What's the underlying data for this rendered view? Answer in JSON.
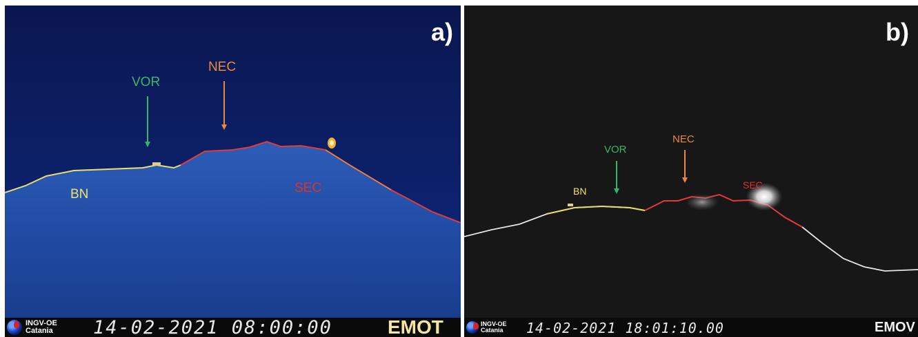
{
  "panel_a": {
    "letter": "a)",
    "labels": {
      "vor": "VOR",
      "nec": "NEC",
      "bn": "BN",
      "sec": "SEC"
    },
    "footer": {
      "org_line1": "INGV-OE",
      "org_line2": "Catania",
      "timestamp": "14-02-2021 08:00:00",
      "camera": "EMOT"
    }
  },
  "panel_b": {
    "letter": "b)",
    "labels": {
      "vor": "VOR",
      "nec": "NEC",
      "bn": "BN",
      "sec": "SEC"
    },
    "footer": {
      "org_line1": "INGV-OE",
      "org_line2": "Catania",
      "timestamp": "14-02-2021  18:01:10.00",
      "camera": "EMOV"
    }
  },
  "colors": {
    "vor": "#33b86a",
    "nec": "#e98a3e",
    "bn": "#f2e36a",
    "sec": "#e0302e",
    "outline_bn": "#e8e070",
    "outline_sec": "#e23b3b"
  }
}
